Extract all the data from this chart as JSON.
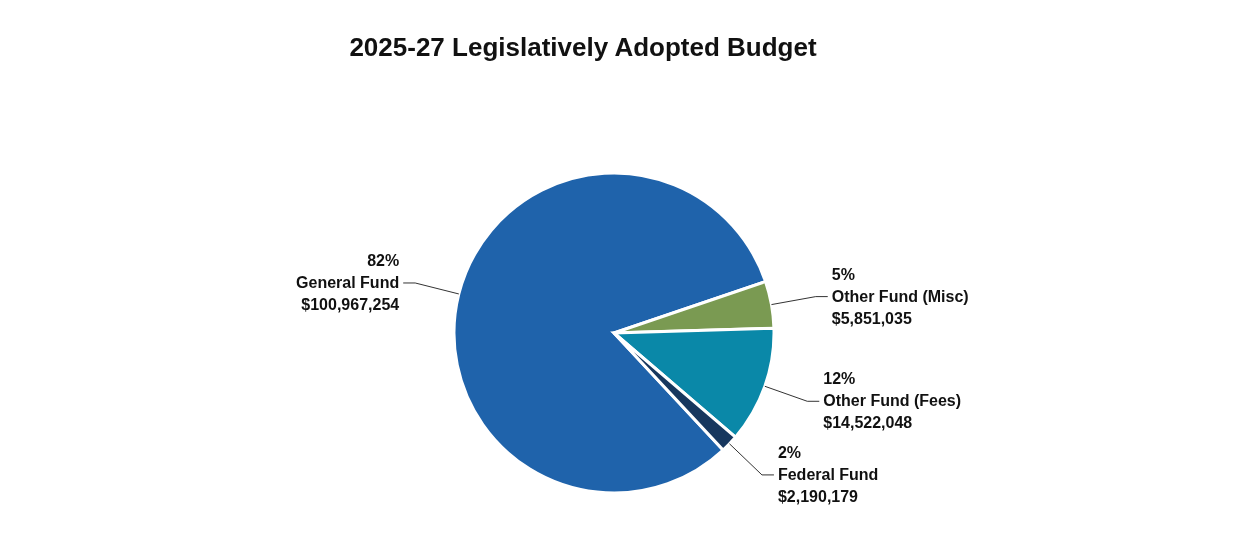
{
  "chart_data": {
    "type": "pie",
    "title": "2025-27 Legislatively Adopted Budget",
    "categories": [
      "General Fund",
      "Other Fund (Misc)",
      "Other Fund (Fees)",
      "Federal Fund"
    ],
    "values": [
      100967254,
      5851035,
      14522048,
      2190179
    ],
    "colors": [
      "#1f63ab",
      "#7a9a52",
      "#0a88a8",
      "#17375e"
    ],
    "value_labels": [
      "$100,967,254",
      "$5,851,035",
      "$14,522,048",
      "$2,190,179"
    ],
    "annotations": [
      {
        "text": "82%",
        "x": "General Fund"
      },
      {
        "text": "5%",
        "x": "Other Fund (Misc)"
      },
      {
        "text": "12%",
        "x": "Other Fund (Fees)"
      },
      {
        "text": "2%",
        "x": "Federal Fund"
      }
    ]
  }
}
